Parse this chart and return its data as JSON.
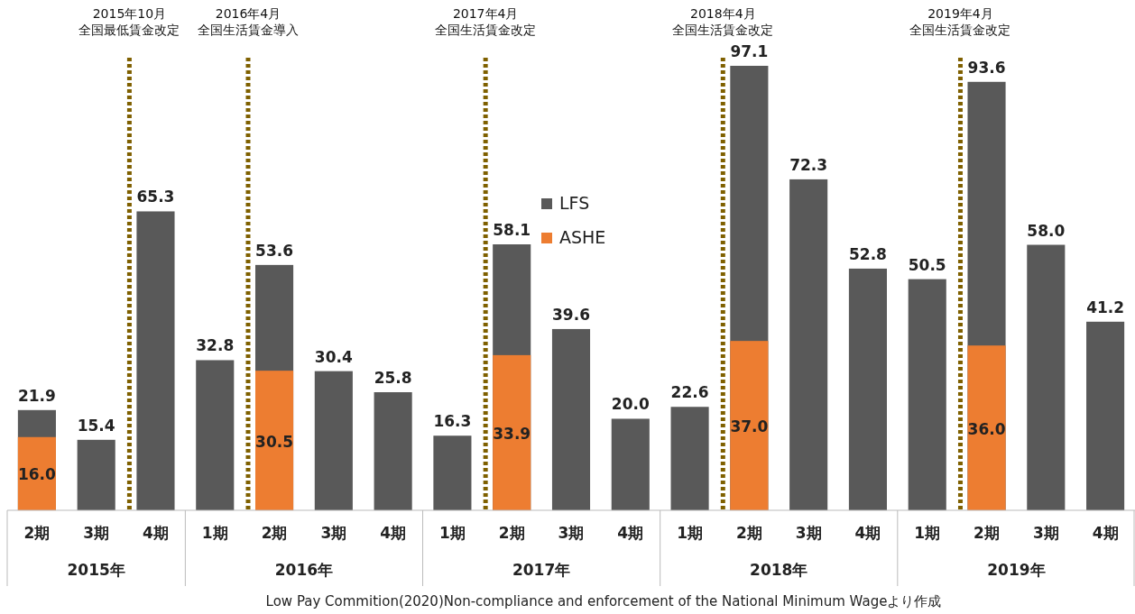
{
  "chart_data": {
    "type": "bar",
    "categories": [
      "2期",
      "3期",
      "4期",
      "1期",
      "2期",
      "3期",
      "4期",
      "1期",
      "2期",
      "3期",
      "4期",
      "1期",
      "2期",
      "3期",
      "4期",
      "1期",
      "2期",
      "3期",
      "4期"
    ],
    "series": [
      {
        "name": "LFS",
        "color": "#595959",
        "values": [
          21.9,
          15.4,
          65.3,
          32.8,
          53.6,
          30.4,
          25.8,
          16.3,
          58.1,
          39.6,
          20.0,
          22.6,
          97.1,
          72.3,
          52.8,
          50.5,
          93.6,
          58.0,
          41.2
        ],
        "value_labels": [
          "21.9",
          "15.4",
          "65.3",
          "32.8",
          "53.6",
          "30.4",
          "25.8",
          "16.3",
          "58.1",
          "39.6",
          "20.0",
          "22.6",
          "97.1",
          "72.3",
          "52.8",
          "50.5",
          "93.6",
          "58.0",
          "41.2"
        ]
      },
      {
        "name": "ASHE",
        "color": "#ed7d31",
        "values": [
          16.0,
          null,
          null,
          null,
          30.5,
          null,
          null,
          null,
          33.9,
          null,
          null,
          null,
          37.0,
          null,
          null,
          null,
          36.0,
          null,
          null
        ],
        "value_labels": [
          "16.0",
          null,
          null,
          null,
          "30.5",
          null,
          null,
          null,
          "33.9",
          null,
          null,
          null,
          "37.0",
          null,
          null,
          null,
          "36.0",
          null,
          null
        ]
      }
    ],
    "legend": "top",
    "annotations": [
      "2015年10月全国最低賃金改定",
      "2016年4月全国生活賃金導入",
      "2017年4月全国生活賃金改定",
      "2018年4月全国生活賃金改定",
      "2019年4月全国生活賃金改定",
      "2015年",
      "2016年",
      "2017年",
      "2018年",
      "2019年",
      "Low Pay Commition(2020)Non-compliance and enforcement of the National Minimum Wageより作成"
    ]
  }
}
